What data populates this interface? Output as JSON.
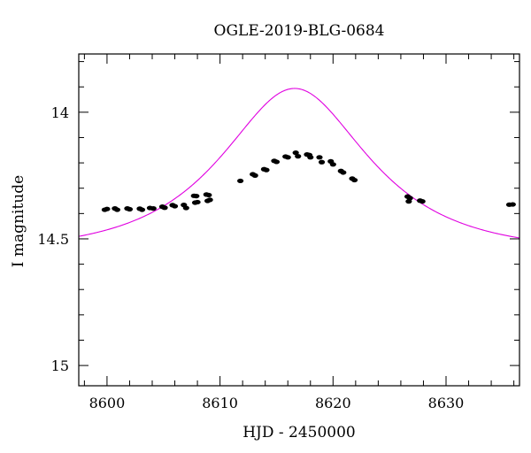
{
  "chart_data": {
    "type": "scatter",
    "title": "OGLE-2019-BLG-0684",
    "xlabel": "HJD - 2450000",
    "ylabel": "I magnitude",
    "xlim": [
      8597.5,
      8636.5
    ],
    "ylim": [
      15.08,
      13.77
    ],
    "y_inverted": true,
    "grid": false,
    "x_ticks": [
      8600,
      8610,
      8620,
      8630
    ],
    "x_tick_labels": [
      "8600",
      "8610",
      "8620",
      "8630"
    ],
    "y_ticks": [
      14,
      14.5,
      15
    ],
    "y_tick_labels": [
      "14",
      "14.5",
      "15"
    ],
    "model_color": "#e000e0",
    "point_color": "#000000",
    "model": {
      "t0": 8616.6,
      "u0": 0.63,
      "tE": 10.0,
      "baseline": 14.553
    },
    "series": [
      {
        "values": [
          {
            "x": 8599.8,
            "y": 14.385
          },
          {
            "x": 8600.0,
            "y": 14.382
          },
          {
            "x": 8600.7,
            "y": 14.38
          },
          {
            "x": 8600.9,
            "y": 14.385
          },
          {
            "x": 8601.8,
            "y": 14.38
          },
          {
            "x": 8602.0,
            "y": 14.383
          },
          {
            "x": 8602.9,
            "y": 14.381
          },
          {
            "x": 8603.1,
            "y": 14.385
          },
          {
            "x": 8603.8,
            "y": 14.378
          },
          {
            "x": 8604.1,
            "y": 14.38
          },
          {
            "x": 8604.9,
            "y": 14.373
          },
          {
            "x": 8605.1,
            "y": 14.377
          },
          {
            "x": 8605.8,
            "y": 14.367
          },
          {
            "x": 8606.0,
            "y": 14.371
          },
          {
            "x": 8606.8,
            "y": 14.366
          },
          {
            "x": 8607.0,
            "y": 14.378
          },
          {
            "x": 8607.7,
            "y": 14.33
          },
          {
            "x": 8607.9,
            "y": 14.331
          },
          {
            "x": 8607.8,
            "y": 14.357
          },
          {
            "x": 8608.0,
            "y": 14.355
          },
          {
            "x": 8608.8,
            "y": 14.325
          },
          {
            "x": 8609.0,
            "y": 14.327
          },
          {
            "x": 8608.9,
            "y": 14.35
          },
          {
            "x": 8609.1,
            "y": 14.346
          },
          {
            "x": 8611.8,
            "y": 14.271
          },
          {
            "x": 8612.9,
            "y": 14.245
          },
          {
            "x": 8613.1,
            "y": 14.25
          },
          {
            "x": 8613.9,
            "y": 14.225
          },
          {
            "x": 8614.1,
            "y": 14.228
          },
          {
            "x": 8614.8,
            "y": 14.192
          },
          {
            "x": 8615.0,
            "y": 14.196
          },
          {
            "x": 8615.8,
            "y": 14.175
          },
          {
            "x": 8616.0,
            "y": 14.178
          },
          {
            "x": 8616.7,
            "y": 14.16
          },
          {
            "x": 8616.9,
            "y": 14.174
          },
          {
            "x": 8617.7,
            "y": 14.167
          },
          {
            "x": 8617.9,
            "y": 14.169
          },
          {
            "x": 8618.0,
            "y": 14.178
          },
          {
            "x": 8618.8,
            "y": 14.178
          },
          {
            "x": 8619.0,
            "y": 14.197
          },
          {
            "x": 8619.8,
            "y": 14.194
          },
          {
            "x": 8620.0,
            "y": 14.206
          },
          {
            "x": 8620.7,
            "y": 14.232
          },
          {
            "x": 8620.9,
            "y": 14.238
          },
          {
            "x": 8621.7,
            "y": 14.262
          },
          {
            "x": 8621.9,
            "y": 14.268
          },
          {
            "x": 8626.6,
            "y": 14.333
          },
          {
            "x": 8626.8,
            "y": 14.339
          },
          {
            "x": 8626.7,
            "y": 14.352
          },
          {
            "x": 8627.7,
            "y": 14.349
          },
          {
            "x": 8627.9,
            "y": 14.352
          },
          {
            "x": 8635.6,
            "y": 14.365
          },
          {
            "x": 8635.9,
            "y": 14.364
          }
        ]
      }
    ]
  }
}
